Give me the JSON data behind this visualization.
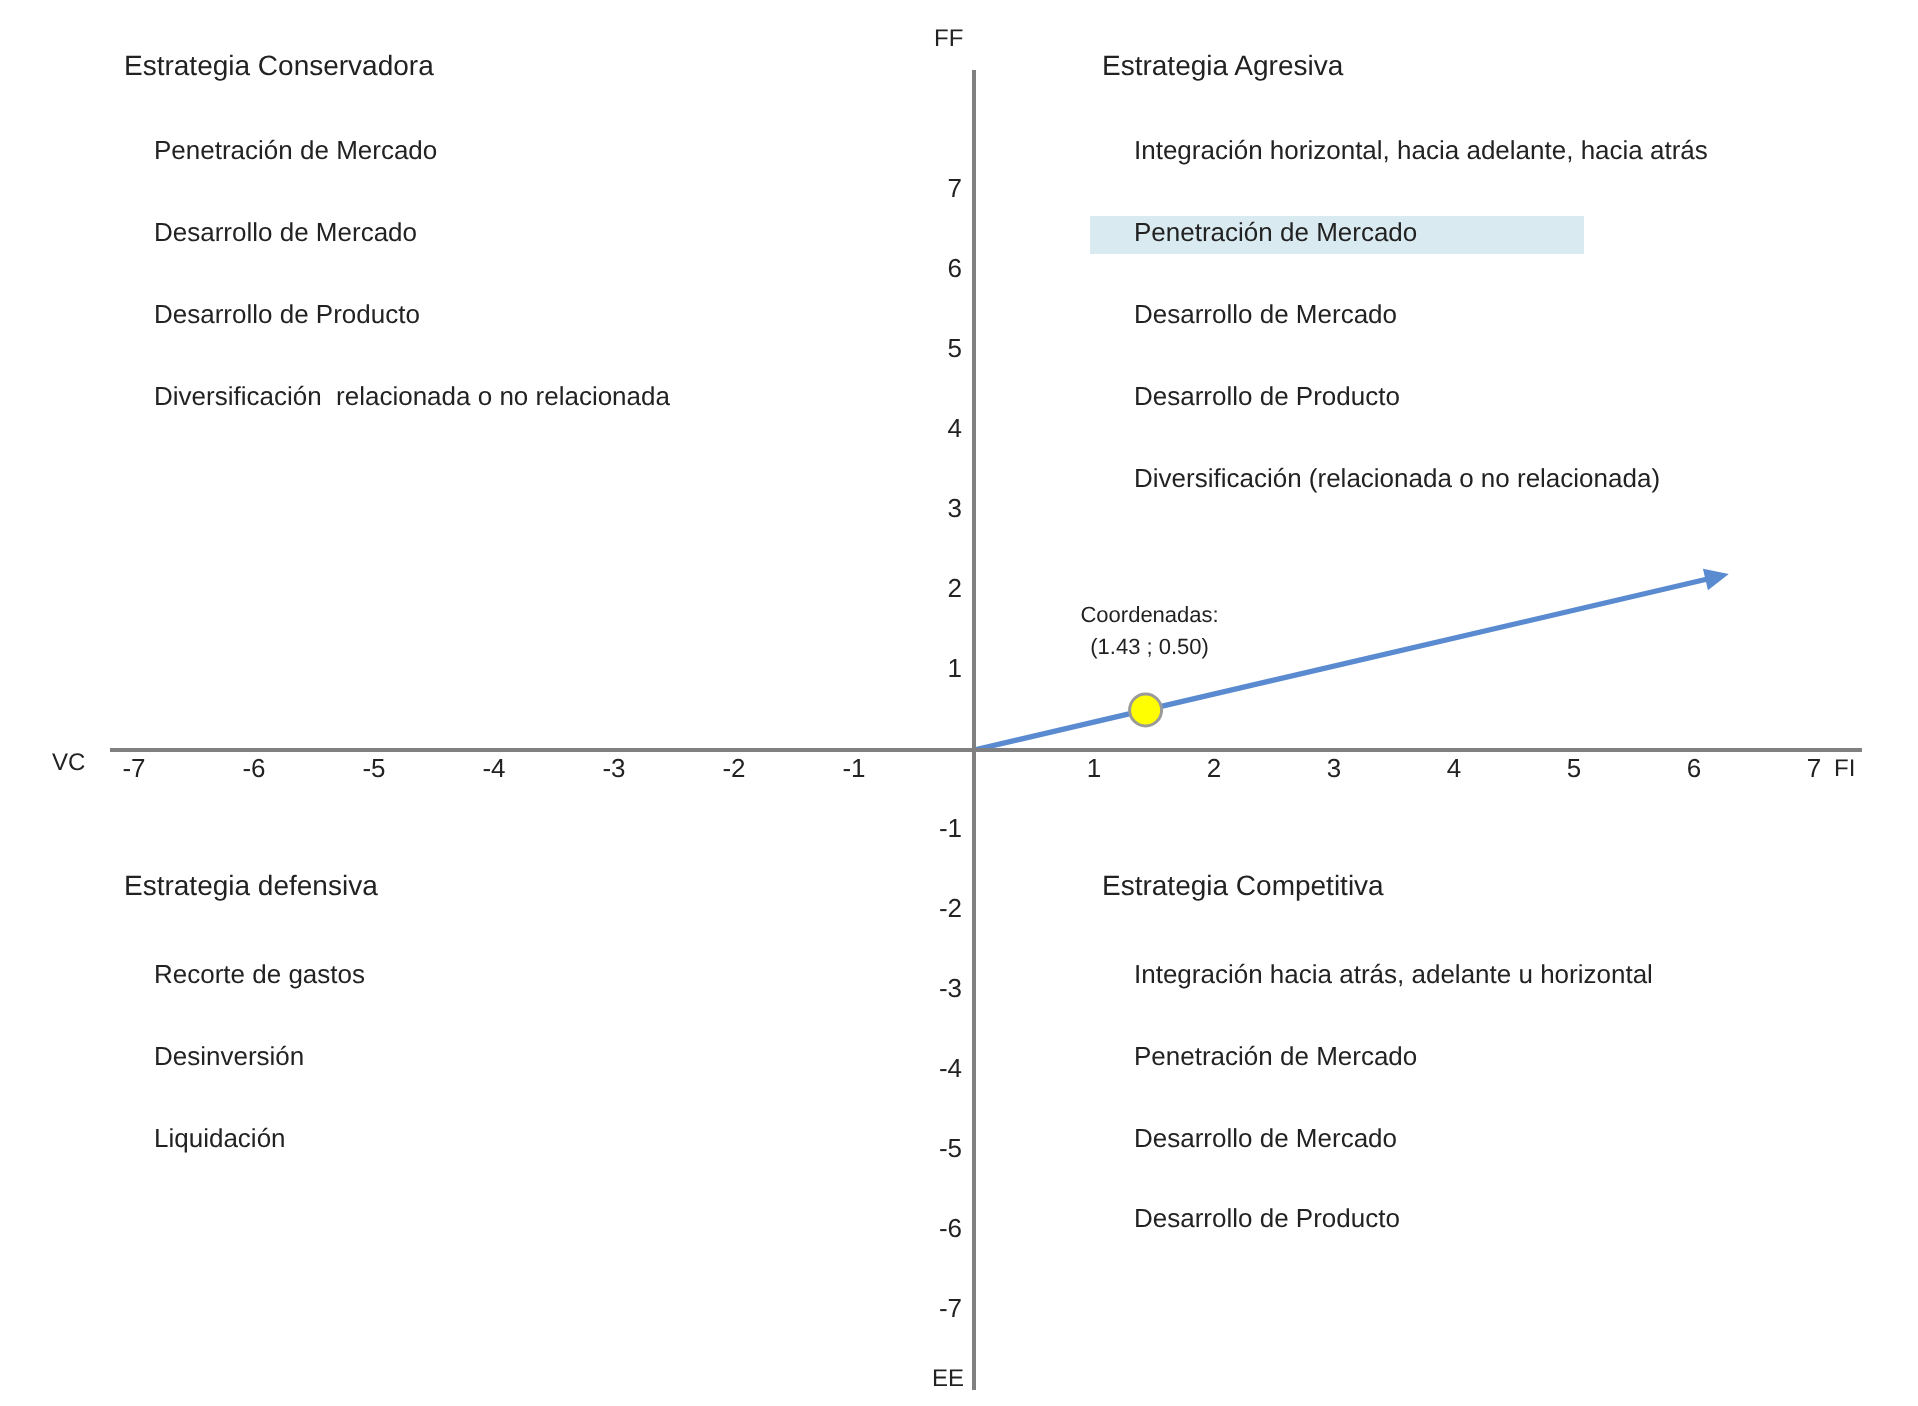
{
  "chart_data": {
    "type": "scatter",
    "xlabel": "FI",
    "ylabel": "FF",
    "xlim": [
      -7.2,
      7.4
    ],
    "ylim": [
      -8,
      8.5
    ],
    "xticks": [
      -7,
      -6,
      -5,
      -4,
      -3,
      -2,
      -1,
      1,
      2,
      3,
      4,
      5,
      6,
      7
    ],
    "yticks": [
      -7,
      -6,
      -5,
      -4,
      -3,
      -2,
      -1,
      1,
      2,
      3,
      4,
      5,
      6,
      7
    ],
    "series": [
      {
        "type": "scatter",
        "x": [
          1.43
        ],
        "values": [
          0.5
        ],
        "color": "#ffff00"
      }
    ],
    "annotations": [
      {
        "text": "Coordenadas:\n(1.43 ; 0.50)",
        "x": 1.43,
        "y": 0.5
      },
      "VC",
      "EE",
      "Estrategia Conservadora",
      "Penetración de Mercado",
      "Desarrollo de Mercado",
      "Desarrollo de Producto",
      "Diversificación  relacionada o no relacionada",
      "Estrategia Agresiva",
      "Integración horizontal, hacia adelante, hacia atrás",
      "Penetración de Mercado",
      "Desarrollo de Mercado",
      "Desarrollo de Producto",
      "Diversificación (relacionada o no relacionada)",
      "Estrategia defensiva",
      "Recorte de gastos",
      "Desinversión",
      "Liquidación",
      "Estrategia Competitiva",
      "Integración hacia atrás, adelante u horizontal",
      "Penetración de Mercado",
      "Desarrollo de Mercado",
      "Desarrollo de Producto"
    ]
  }
}
